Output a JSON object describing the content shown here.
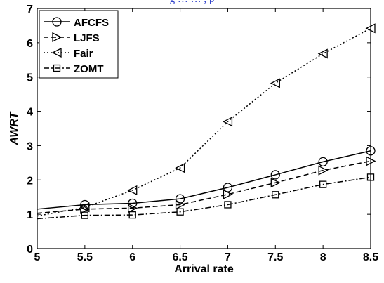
{
  "caption": "g … … , p",
  "chart_data": {
    "type": "line",
    "title": "",
    "xlabel": "Arrival rate",
    "ylabel": "AWRT",
    "xlim": [
      5,
      8.5
    ],
    "ylim": [
      0,
      7
    ],
    "x_ticks": [
      "5",
      "5.5",
      "6",
      "6.5",
      "7",
      "7.5",
      "8",
      "8.5"
    ],
    "y_ticks": [
      "0",
      "1",
      "2",
      "3",
      "4",
      "5",
      "6",
      "7"
    ],
    "grid": false,
    "legend_position": "top-left",
    "series": [
      {
        "name": "AFCFS",
        "style": "solid",
        "marker": "circle",
        "x": [
          5,
          5.5,
          6,
          6.5,
          7,
          7.5,
          8,
          8.5
        ],
        "y": [
          1.15,
          1.28,
          1.32,
          1.45,
          1.78,
          2.15,
          2.53,
          2.85
        ]
      },
      {
        "name": "LJFS",
        "style": "dashed",
        "marker": "triangle-right",
        "x": [
          5,
          5.5,
          6,
          6.5,
          7,
          7.5,
          8,
          8.5
        ],
        "y": [
          1.03,
          1.15,
          1.18,
          1.28,
          1.58,
          1.92,
          2.28,
          2.55
        ]
      },
      {
        "name": "Fair",
        "style": "dotted",
        "marker": "triangle-left",
        "x": [
          5,
          5.5,
          6,
          6.5,
          7,
          7.5,
          8,
          8.5
        ],
        "y": [
          0.95,
          1.2,
          1.7,
          2.35,
          3.7,
          4.82,
          5.68,
          6.42
        ]
      },
      {
        "name": "ZOMT",
        "style": "dashdot",
        "marker": "square",
        "x": [
          5,
          5.5,
          6,
          6.5,
          7,
          7.5,
          8,
          8.5
        ],
        "y": [
          0.87,
          0.97,
          0.98,
          1.07,
          1.28,
          1.57,
          1.87,
          2.08
        ]
      }
    ]
  }
}
